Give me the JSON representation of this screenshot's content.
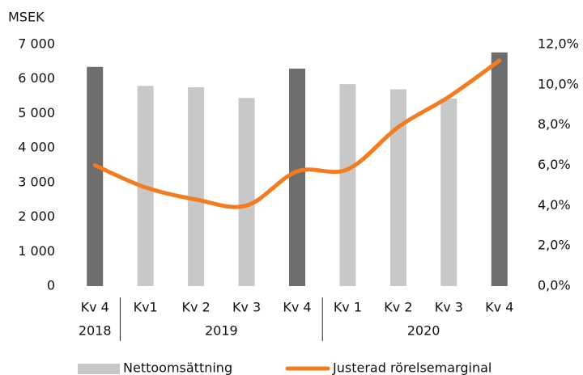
{
  "chart_data": {
    "type": "bar-line",
    "y_label": "MSEK",
    "categories": [
      "Kv 4",
      "Kv1",
      "Kv 2",
      "Kv 3",
      "Kv 4",
      "Kv 1",
      "Kv 2",
      "Kv 3",
      "Kv 4"
    ],
    "years": [
      "2018",
      "2019",
      "2019",
      "2019",
      "2019",
      "2020",
      "2020",
      "2020",
      "2020"
    ],
    "series": [
      {
        "name": "Nettoomsättning",
        "type": "bar",
        "color": "#c8c8c8",
        "colors": [
          "#6e6e6e",
          "#c8c8c8",
          "#c8c8c8",
          "#c8c8c8",
          "#6e6e6e",
          "#c8c8c8",
          "#c8c8c8",
          "#c8c8c8",
          "#6e6e6e"
        ],
        "values": [
          6350,
          5800,
          5760,
          5450,
          6300,
          5850,
          5700,
          5430,
          6770
        ]
      },
      {
        "name": "Justerad rörelsemarginal",
        "type": "line",
        "axis": "y2",
        "color": "#f47c20",
        "values": [
          6.0,
          4.9,
          4.3,
          4.0,
          5.7,
          5.8,
          7.9,
          9.4,
          11.2
        ]
      }
    ],
    "ylim": [
      0,
      7000
    ],
    "yticks": [
      0,
      {
        "value": 1000,
        "label": "1 000"
      },
      {
        "value": 2000,
        "label": "2 000"
      },
      {
        "value": 3000,
        "label": "3 000"
      },
      {
        "value": 4000,
        "label": "4 000"
      },
      {
        "value": 5000,
        "label": "5 000"
      },
      {
        "value": 6000,
        "label": "6 000"
      },
      {
        "value": 7000,
        "label": "7 000"
      }
    ],
    "y2lim": [
      0,
      12
    ],
    "y2ticks": [
      {
        "value": 0,
        "label": "0,0%"
      },
      {
        "value": 2,
        "label": "2,0%"
      },
      {
        "value": 4,
        "label": "4,0%"
      },
      {
        "value": 6,
        "label": "6,0%"
      },
      {
        "value": 8,
        "label": "8,0%"
      },
      {
        "value": 10,
        "label": "10,0%"
      },
      {
        "value": 12,
        "label": "12,0%"
      }
    ],
    "legend": "bottom"
  }
}
